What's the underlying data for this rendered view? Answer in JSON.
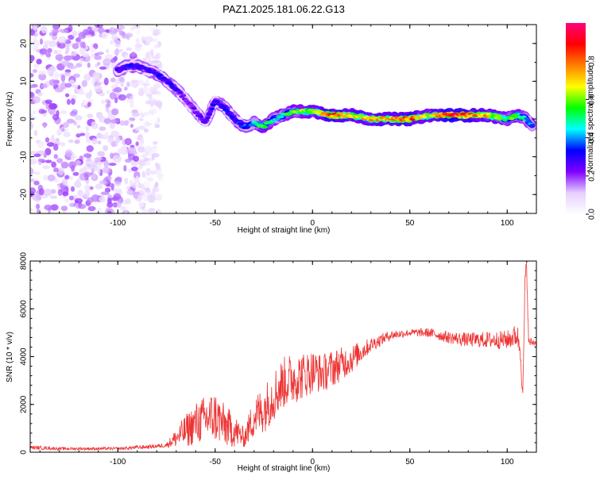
{
  "title": "PAZ1.2025.181.06.22.G13",
  "chart_data": [
    {
      "type": "heatmap",
      "xlabel": "Height of straight line (km)",
      "ylabel": "Frequency (Hz)",
      "xlim": [
        -145,
        115
      ],
      "ylim": [
        -25,
        25
      ],
      "xticks": [
        -100,
        -50,
        0,
        50,
        100
      ],
      "yticks": [
        -20,
        -10,
        0,
        10,
        20
      ],
      "colorbar": {
        "label": "Normalized spectral amplitude",
        "range": [
          0,
          1
        ],
        "ticks": [
          "0.0",
          "0.2",
          "0.4",
          "0.6",
          "0.8"
        ],
        "colors": [
          "#ffffff",
          "#e6d0ff",
          "#8000ff",
          "#0000ff",
          "#00ffff",
          "#00ff00",
          "#ffff00",
          "#ff8000",
          "#ff0000",
          "#ff0080"
        ]
      },
      "ridge": {
        "x": [
          -100,
          -95,
          -90,
          -85,
          -80,
          -75,
          -70,
          -65,
          -60,
          -55,
          -50,
          -45,
          -40,
          -35,
          -30,
          -25,
          -20,
          -15,
          -10,
          -5,
          0,
          10,
          20,
          30,
          40,
          50,
          60,
          70,
          80,
          90,
          100,
          105,
          110,
          113
        ],
        "y": [
          13,
          14,
          14,
          13,
          12,
          10,
          8,
          5,
          2,
          -1,
          5,
          3,
          0,
          -2,
          -1,
          -2,
          0,
          1,
          2,
          2,
          2,
          1,
          1,
          0,
          0,
          0,
          1,
          1,
          1,
          1,
          0,
          1,
          0,
          -2
        ],
        "amplitude": [
          0.3,
          0.3,
          0.3,
          0.3,
          0.3,
          0.3,
          0.3,
          0.2,
          0.25,
          0.25,
          0.3,
          0.3,
          0.3,
          0.35,
          0.4,
          0.6,
          0.45,
          0.5,
          0.55,
          0.6,
          0.6,
          0.8,
          0.7,
          0.7,
          0.7,
          0.8,
          0.6,
          0.9,
          0.8,
          0.7,
          0.5,
          0.6,
          0.4,
          0.4
        ]
      },
      "noise_region": {
        "x_range": [
          -145,
          -78
        ],
        "y_range": [
          -25,
          25
        ],
        "amplitude": [
          0.05,
          0.2
        ]
      }
    },
    {
      "type": "line",
      "xlabel": "Height of straight line (km)",
      "ylabel": "SNR (10 * v/v)",
      "xlim": [
        -145,
        115
      ],
      "ylim": [
        0,
        8000
      ],
      "xticks": [
        -100,
        -50,
        0,
        50,
        100
      ],
      "yticks": [
        0,
        2000,
        4000,
        6000,
        8000
      ],
      "color": "#ee3333",
      "x": [
        -145,
        -130,
        -115,
        -100,
        -90,
        -80,
        -75,
        -70,
        -65,
        -60,
        -55,
        -50,
        -45,
        -40,
        -35,
        -30,
        -25,
        -20,
        -15,
        -10,
        -5,
        0,
        5,
        10,
        20,
        30,
        40,
        50,
        60,
        70,
        80,
        90,
        100,
        105,
        107,
        108,
        109,
        110,
        111,
        115
      ],
      "y": [
        200,
        150,
        150,
        150,
        200,
        250,
        300,
        600,
        900,
        1200,
        1400,
        1500,
        1100,
        900,
        600,
        1500,
        1800,
        2400,
        2900,
        3100,
        3200,
        3400,
        3300,
        3500,
        3900,
        4500,
        4900,
        5000,
        5000,
        4800,
        4700,
        4700,
        4700,
        4900,
        4300,
        2000,
        6500,
        8000,
        4600,
        4600
      ],
      "spread": [
        80,
        60,
        60,
        60,
        80,
        80,
        100,
        400,
        700,
        900,
        1000,
        1100,
        900,
        700,
        400,
        900,
        1000,
        1100,
        1100,
        1100,
        1000,
        900,
        800,
        800,
        600,
        300,
        200,
        150,
        200,
        250,
        300,
        350,
        400,
        500,
        600,
        600,
        700,
        600,
        200,
        150
      ]
    }
  ]
}
